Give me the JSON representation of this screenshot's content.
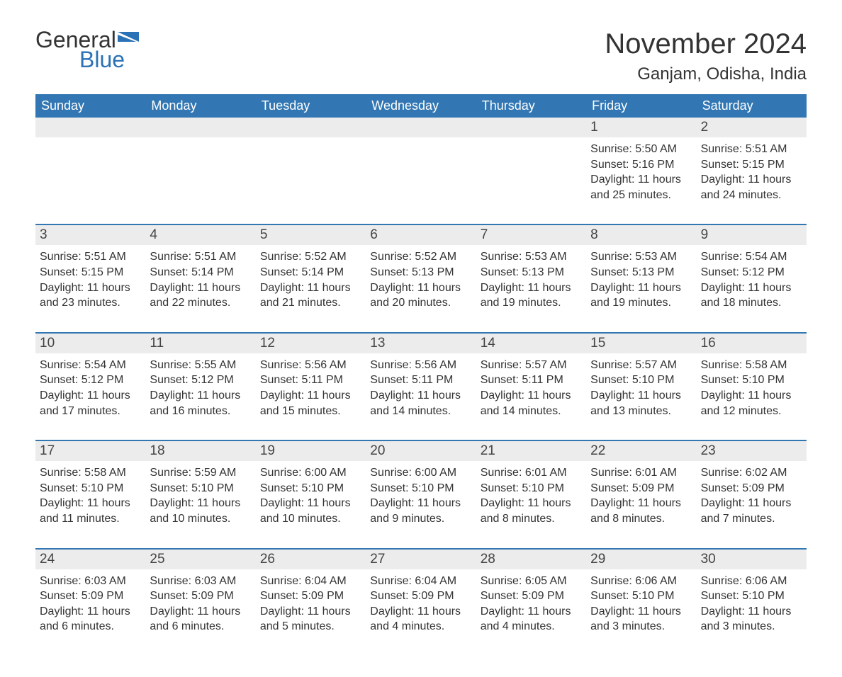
{
  "logo": {
    "text1": "General",
    "text2": "Blue",
    "iconColor": "#2a72b5"
  },
  "title": "November 2024",
  "location": "Ganjam, Odisha, India",
  "headerBg": "#3277b3",
  "dayNumBg": "#ececec",
  "weekBorderColor": "#3277b3",
  "dayNames": [
    "Sunday",
    "Monday",
    "Tuesday",
    "Wednesday",
    "Thursday",
    "Friday",
    "Saturday"
  ],
  "weeks": [
    [
      null,
      null,
      null,
      null,
      null,
      {
        "day": "1",
        "sunrise": "Sunrise: 5:50 AM",
        "sunset": "Sunset: 5:16 PM",
        "daylight": "Daylight: 11 hours and 25 minutes."
      },
      {
        "day": "2",
        "sunrise": "Sunrise: 5:51 AM",
        "sunset": "Sunset: 5:15 PM",
        "daylight": "Daylight: 11 hours and 24 minutes."
      }
    ],
    [
      {
        "day": "3",
        "sunrise": "Sunrise: 5:51 AM",
        "sunset": "Sunset: 5:15 PM",
        "daylight": "Daylight: 11 hours and 23 minutes."
      },
      {
        "day": "4",
        "sunrise": "Sunrise: 5:51 AM",
        "sunset": "Sunset: 5:14 PM",
        "daylight": "Daylight: 11 hours and 22 minutes."
      },
      {
        "day": "5",
        "sunrise": "Sunrise: 5:52 AM",
        "sunset": "Sunset: 5:14 PM",
        "daylight": "Daylight: 11 hours and 21 minutes."
      },
      {
        "day": "6",
        "sunrise": "Sunrise: 5:52 AM",
        "sunset": "Sunset: 5:13 PM",
        "daylight": "Daylight: 11 hours and 20 minutes."
      },
      {
        "day": "7",
        "sunrise": "Sunrise: 5:53 AM",
        "sunset": "Sunset: 5:13 PM",
        "daylight": "Daylight: 11 hours and 19 minutes."
      },
      {
        "day": "8",
        "sunrise": "Sunrise: 5:53 AM",
        "sunset": "Sunset: 5:13 PM",
        "daylight": "Daylight: 11 hours and 19 minutes."
      },
      {
        "day": "9",
        "sunrise": "Sunrise: 5:54 AM",
        "sunset": "Sunset: 5:12 PM",
        "daylight": "Daylight: 11 hours and 18 minutes."
      }
    ],
    [
      {
        "day": "10",
        "sunrise": "Sunrise: 5:54 AM",
        "sunset": "Sunset: 5:12 PM",
        "daylight": "Daylight: 11 hours and 17 minutes."
      },
      {
        "day": "11",
        "sunrise": "Sunrise: 5:55 AM",
        "sunset": "Sunset: 5:12 PM",
        "daylight": "Daylight: 11 hours and 16 minutes."
      },
      {
        "day": "12",
        "sunrise": "Sunrise: 5:56 AM",
        "sunset": "Sunset: 5:11 PM",
        "daylight": "Daylight: 11 hours and 15 minutes."
      },
      {
        "day": "13",
        "sunrise": "Sunrise: 5:56 AM",
        "sunset": "Sunset: 5:11 PM",
        "daylight": "Daylight: 11 hours and 14 minutes."
      },
      {
        "day": "14",
        "sunrise": "Sunrise: 5:57 AM",
        "sunset": "Sunset: 5:11 PM",
        "daylight": "Daylight: 11 hours and 14 minutes."
      },
      {
        "day": "15",
        "sunrise": "Sunrise: 5:57 AM",
        "sunset": "Sunset: 5:10 PM",
        "daylight": "Daylight: 11 hours and 13 minutes."
      },
      {
        "day": "16",
        "sunrise": "Sunrise: 5:58 AM",
        "sunset": "Sunset: 5:10 PM",
        "daylight": "Daylight: 11 hours and 12 minutes."
      }
    ],
    [
      {
        "day": "17",
        "sunrise": "Sunrise: 5:58 AM",
        "sunset": "Sunset: 5:10 PM",
        "daylight": "Daylight: 11 hours and 11 minutes."
      },
      {
        "day": "18",
        "sunrise": "Sunrise: 5:59 AM",
        "sunset": "Sunset: 5:10 PM",
        "daylight": "Daylight: 11 hours and 10 minutes."
      },
      {
        "day": "19",
        "sunrise": "Sunrise: 6:00 AM",
        "sunset": "Sunset: 5:10 PM",
        "daylight": "Daylight: 11 hours and 10 minutes."
      },
      {
        "day": "20",
        "sunrise": "Sunrise: 6:00 AM",
        "sunset": "Sunset: 5:10 PM",
        "daylight": "Daylight: 11 hours and 9 minutes."
      },
      {
        "day": "21",
        "sunrise": "Sunrise: 6:01 AM",
        "sunset": "Sunset: 5:10 PM",
        "daylight": "Daylight: 11 hours and 8 minutes."
      },
      {
        "day": "22",
        "sunrise": "Sunrise: 6:01 AM",
        "sunset": "Sunset: 5:09 PM",
        "daylight": "Daylight: 11 hours and 8 minutes."
      },
      {
        "day": "23",
        "sunrise": "Sunrise: 6:02 AM",
        "sunset": "Sunset: 5:09 PM",
        "daylight": "Daylight: 11 hours and 7 minutes."
      }
    ],
    [
      {
        "day": "24",
        "sunrise": "Sunrise: 6:03 AM",
        "sunset": "Sunset: 5:09 PM",
        "daylight": "Daylight: 11 hours and 6 minutes."
      },
      {
        "day": "25",
        "sunrise": "Sunrise: 6:03 AM",
        "sunset": "Sunset: 5:09 PM",
        "daylight": "Daylight: 11 hours and 6 minutes."
      },
      {
        "day": "26",
        "sunrise": "Sunrise: 6:04 AM",
        "sunset": "Sunset: 5:09 PM",
        "daylight": "Daylight: 11 hours and 5 minutes."
      },
      {
        "day": "27",
        "sunrise": "Sunrise: 6:04 AM",
        "sunset": "Sunset: 5:09 PM",
        "daylight": "Daylight: 11 hours and 4 minutes."
      },
      {
        "day": "28",
        "sunrise": "Sunrise: 6:05 AM",
        "sunset": "Sunset: 5:09 PM",
        "daylight": "Daylight: 11 hours and 4 minutes."
      },
      {
        "day": "29",
        "sunrise": "Sunrise: 6:06 AM",
        "sunset": "Sunset: 5:10 PM",
        "daylight": "Daylight: 11 hours and 3 minutes."
      },
      {
        "day": "30",
        "sunrise": "Sunrise: 6:06 AM",
        "sunset": "Sunset: 5:10 PM",
        "daylight": "Daylight: 11 hours and 3 minutes."
      }
    ]
  ]
}
